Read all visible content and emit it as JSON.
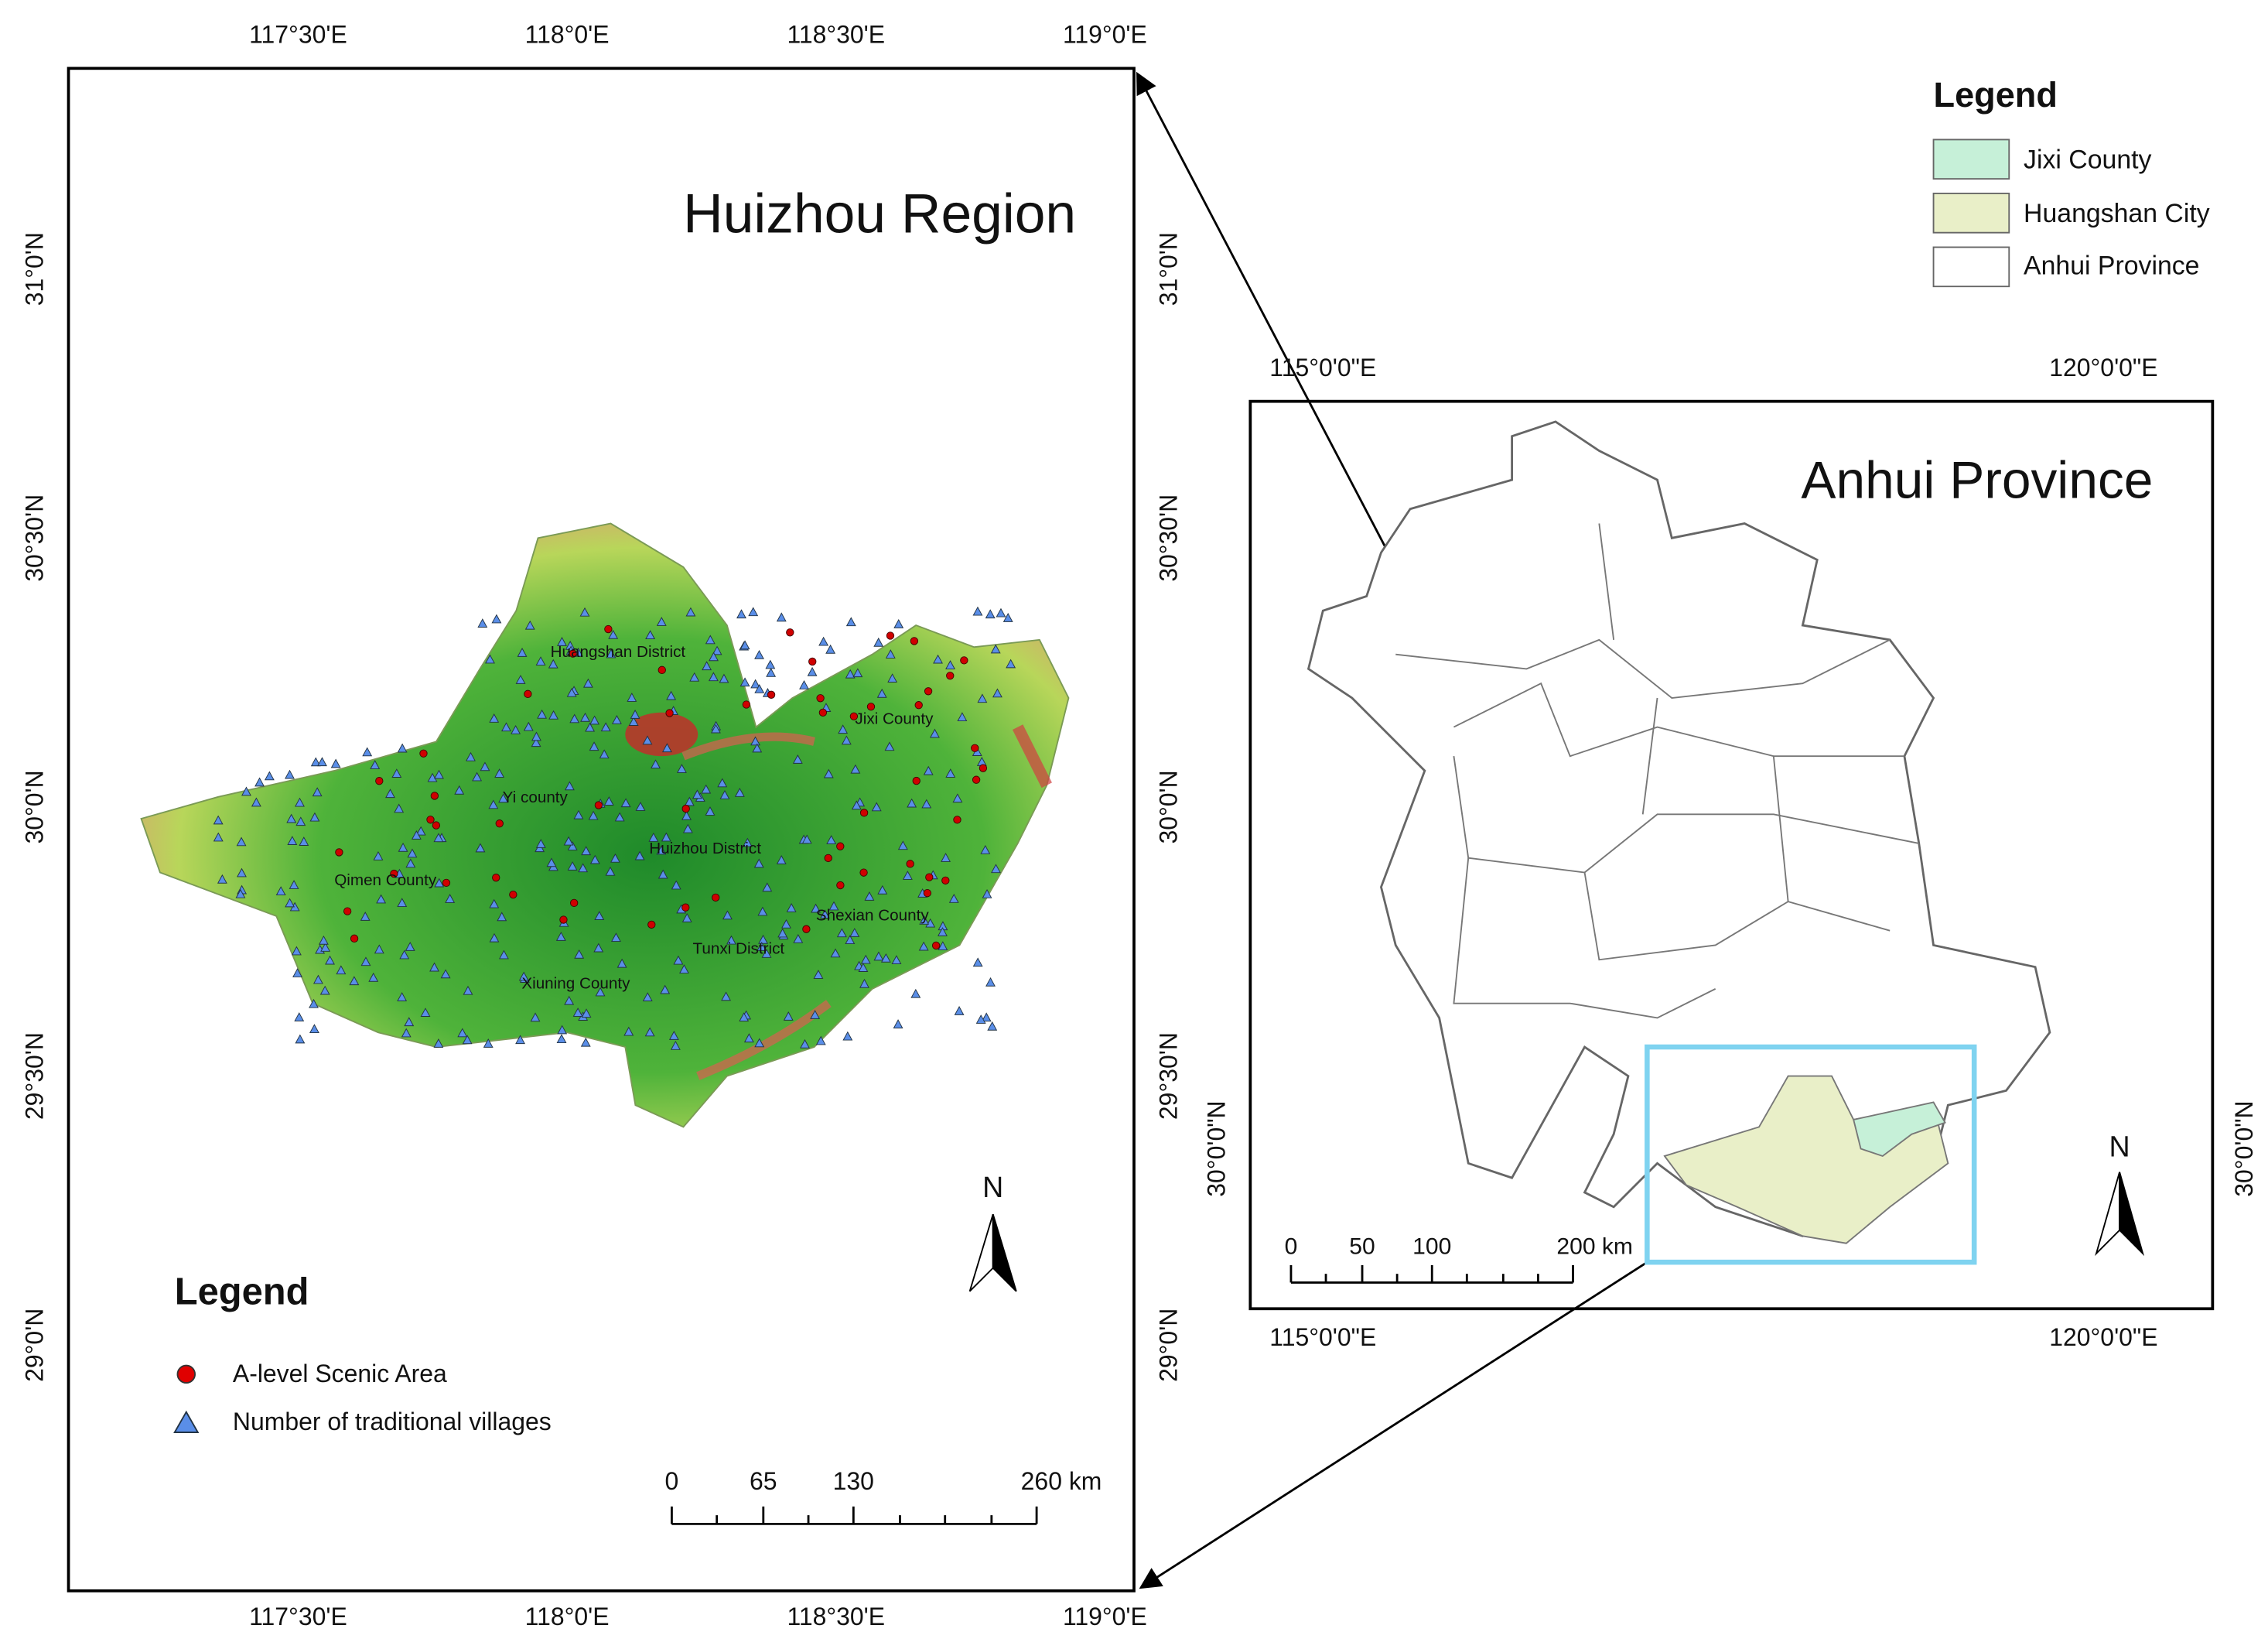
{
  "huizhou_map": {
    "title": "Huizhou Region",
    "lon_ticks": [
      "117°30'E",
      "118°0'E",
      "118°30'E",
      "119°0'E"
    ],
    "lat_ticks": [
      "31°0'N",
      "30°30'N",
      "30°0'N",
      "29°30'N",
      "29°0'N"
    ],
    "places": [
      "Huangshan District",
      "Jixi County",
      "Yi county",
      "Huizhou District",
      "Qimen County",
      "Shexian County",
      "Tunxi District",
      "Xiuning County"
    ],
    "legend": {
      "title": "Legend",
      "items": [
        "A-level Scenic Area",
        "Number of traditional villages"
      ]
    },
    "scale_labels": [
      "0",
      "65",
      "130",
      "260 km"
    ],
    "north": "N"
  },
  "anhui_map": {
    "title": "Anhui Province",
    "lon_ticks": [
      "115°0'0\"E",
      "120°0'0\"E"
    ],
    "lat_ticks": [
      "30°0'0\"N"
    ],
    "scale_labels": [
      "0",
      "50",
      "100",
      "200 km"
    ],
    "north": "N",
    "legend": {
      "title": "Legend",
      "items": [
        "Jixi County",
        "Huangshan City",
        "Anhui Province"
      ]
    }
  }
}
